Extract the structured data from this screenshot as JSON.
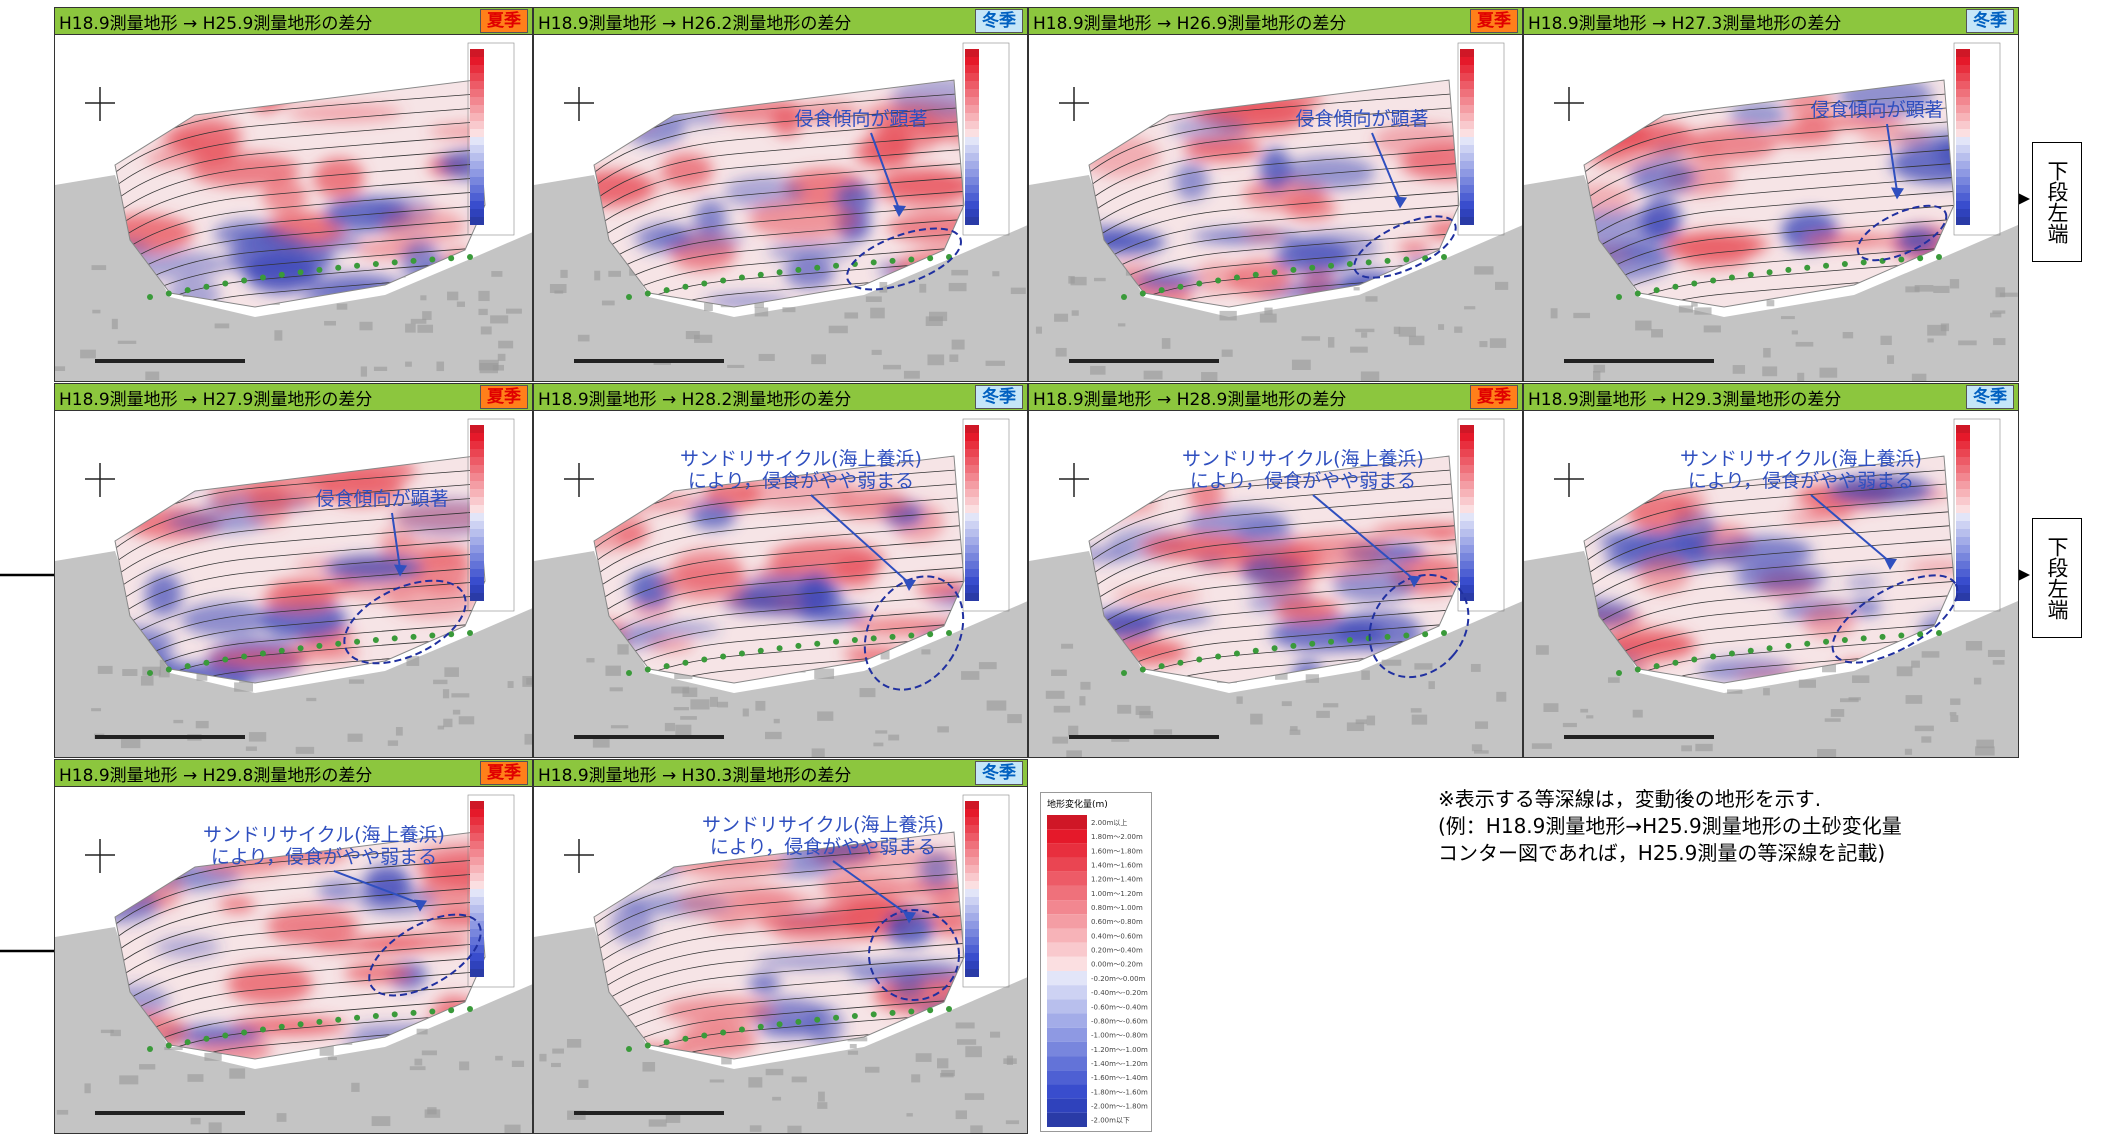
{
  "panels": [
    {
      "header": "H18.9測量地形 → H25.9測量地形の差分",
      "season": "夏季"
    },
    {
      "header": "H18.9測量地形 → H26.2測量地形の差分",
      "season": "冬季",
      "annotation": [
        "侵食傾向が顕著"
      ]
    },
    {
      "header": "H18.9測量地形 → H26.9測量地形の差分",
      "season": "夏季",
      "annotation": [
        "侵食傾向が顕著"
      ]
    },
    {
      "header": "H18.9測量地形 → H27.3測量地形の差分",
      "season": "冬季",
      "annotation": [
        "侵食傾向が顕著"
      ]
    },
    {
      "header": "H18.9測量地形 → H27.9測量地形の差分",
      "season": "夏季",
      "annotation": [
        "侵食傾向が顕著"
      ]
    },
    {
      "header": "H18.9測量地形 → H28.2測量地形の差分",
      "season": "冬季",
      "annotation": [
        "サンドリサイクル(海上養浜)",
        "により，侵食がやや弱まる"
      ]
    },
    {
      "header": "H18.9測量地形 → H28.9測量地形の差分",
      "season": "夏季",
      "annotation": [
        "サンドリサイクル(海上養浜)",
        "により，侵食がやや弱まる"
      ]
    },
    {
      "header": "H18.9測量地形 → H29.3測量地形の差分",
      "season": "冬季",
      "annotation": [
        "サンドリサイクル(海上養浜)",
        "により，侵食がやや弱まる"
      ]
    },
    {
      "header": "H18.9測量地形 → H29.8測量地形の差分",
      "season": "夏季",
      "annotation": [
        "サンドリサイクル(海上養浜)",
        "により，侵食がやや弱まる"
      ]
    },
    {
      "header": "H18.9測量地形 → H30.3測量地形の差分",
      "season": "冬季",
      "annotation": [
        "サンドリサイクル(海上養浜)",
        "により，侵食がやや弱まる"
      ]
    }
  ],
  "side_labels": [
    "下段左端",
    "下段左端"
  ],
  "legend": {
    "title": "地形変化量(m)",
    "entries": [
      "2.00m以上",
      "1.80m～2.00m",
      "1.60m～1.80m",
      "1.40m～1.60m",
      "1.20m～1.40m",
      "1.00m～1.20m",
      "0.80m～1.00m",
      "0.60m～0.80m",
      "0.40m～0.60m",
      "0.20m～0.40m",
      "0.00m～0.20m",
      "-0.20m～0.00m",
      "-0.40m～-0.20m",
      "-0.60m～-0.40m",
      "-0.80m～-0.60m",
      "-1.00m～-0.80m",
      "-1.20m～-1.00m",
      "-1.40m～-1.20m",
      "-1.60m～-1.40m",
      "-1.80m～-1.60m",
      "-2.00m～-1.80m",
      "-2.00m以下"
    ]
  },
  "note": [
    "※表示する等深線は，変動後の地形を示す.",
    "(例：H18.9測量地形→H25.9測量地形の土砂変化量",
    "コンター図であれば，H25.9測量の等深線を記載)"
  ]
}
